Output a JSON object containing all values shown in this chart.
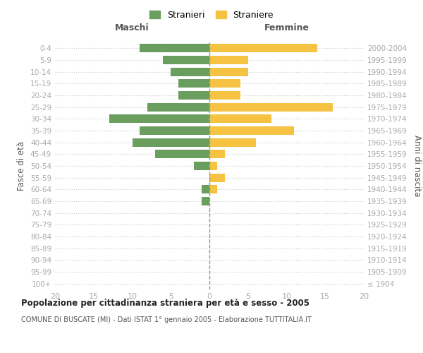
{
  "age_groups": [
    "100+",
    "95-99",
    "90-94",
    "85-89",
    "80-84",
    "75-79",
    "70-74",
    "65-69",
    "60-64",
    "55-59",
    "50-54",
    "45-49",
    "40-44",
    "35-39",
    "30-34",
    "25-29",
    "20-24",
    "15-19",
    "10-14",
    "5-9",
    "0-4"
  ],
  "birth_years": [
    "≤ 1904",
    "1905-1909",
    "1910-1914",
    "1915-1919",
    "1920-1924",
    "1925-1929",
    "1930-1934",
    "1935-1939",
    "1940-1944",
    "1945-1949",
    "1950-1954",
    "1955-1959",
    "1960-1964",
    "1965-1969",
    "1970-1974",
    "1975-1979",
    "1980-1984",
    "1985-1989",
    "1990-1994",
    "1995-1999",
    "2000-2004"
  ],
  "maschi": [
    0,
    0,
    0,
    0,
    0,
    0,
    0,
    1,
    1,
    0,
    2,
    7,
    10,
    9,
    13,
    8,
    4,
    4,
    5,
    6,
    9
  ],
  "femmine": [
    0,
    0,
    0,
    0,
    0,
    0,
    0,
    0,
    1,
    2,
    1,
    2,
    6,
    11,
    8,
    16,
    4,
    4,
    5,
    5,
    14
  ],
  "male_color": "#6a9e5e",
  "female_color": "#f5c242",
  "title": "Popolazione per cittadinanza straniera per età e sesso - 2005",
  "subtitle": "COMUNE DI BUSCATE (MI) - Dati ISTAT 1° gennaio 2005 - Elaborazione TUTTITALIA.IT",
  "left_label": "Maschi",
  "right_label": "Femmine",
  "left_axis_label": "Fasce di età",
  "right_axis_label": "Anni di nascita",
  "legend_male": "Stranieri",
  "legend_female": "Straniere",
  "xlim": 20,
  "background_color": "#ffffff",
  "grid_color": "#cccccc",
  "tick_color": "#aaaaaa",
  "label_color": "#555555",
  "dashed_line_color": "#999966"
}
